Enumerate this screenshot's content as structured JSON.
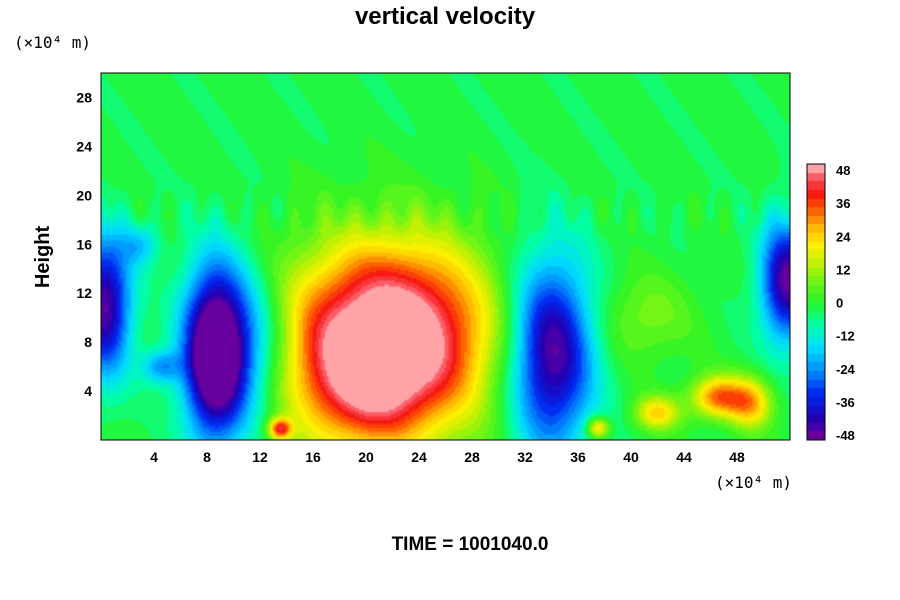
{
  "chart_data": {
    "type": "heatmap",
    "title": "vertical velocity",
    "ylabel": "Height",
    "xunit": "(×10⁴ m)",
    "yunit": "(×10⁴ m)",
    "footer": "TIME = 1001040.0",
    "xlim": [
      0,
      52
    ],
    "ylim": [
      0,
      30
    ],
    "xticks": [
      4,
      8,
      12,
      16,
      20,
      24,
      28,
      32,
      36,
      40,
      44,
      48
    ],
    "yticks": [
      4,
      8,
      12,
      16,
      20,
      24,
      28
    ],
    "colorbar": {
      "range": [
        -48,
        48
      ],
      "ticks": [
        48,
        36,
        24,
        12,
        0,
        -12,
        -24,
        -36,
        -48
      ]
    },
    "features": [
      {
        "x": 20.5,
        "y": 7.5,
        "value": 48,
        "sx": 5.5,
        "sy": 5.5
      },
      {
        "x": 23.5,
        "y": 9.5,
        "value": 20,
        "sx": 4.5,
        "sy": 5.0
      },
      {
        "x": 20.0,
        "y": 4.0,
        "value": 12,
        "sx": 3.0,
        "sy": 3.0
      },
      {
        "x": 8.5,
        "y": 7.0,
        "value": -48,
        "sx": 1.6,
        "sy": 5.0
      },
      {
        "x": 10.5,
        "y": 7.5,
        "value": -30,
        "sx": 2.5,
        "sy": 4.5
      },
      {
        "x": 34.0,
        "y": 7.0,
        "value": -46,
        "sx": 2.2,
        "sy": 5.5
      },
      {
        "x": 0.3,
        "y": 11.0,
        "value": -44,
        "sx": 1.4,
        "sy": 4.0
      },
      {
        "x": 51.8,
        "y": 13.0,
        "value": -44,
        "sx": 1.4,
        "sy": 3.5
      },
      {
        "x": 46.5,
        "y": 3.5,
        "value": 32,
        "sx": 1.4,
        "sy": 1.2
      },
      {
        "x": 49.0,
        "y": 3.0,
        "value": 26,
        "sx": 1.2,
        "sy": 1.5
      },
      {
        "x": 42.0,
        "y": 2.2,
        "value": 24,
        "sx": 1.2,
        "sy": 1.0
      },
      {
        "x": 13.5,
        "y": 0.9,
        "value": 36,
        "sx": 0.6,
        "sy": 0.6
      },
      {
        "x": 37.5,
        "y": 1.0,
        "value": 28,
        "sx": 0.6,
        "sy": 0.6
      },
      {
        "x": 4.5,
        "y": 6.0,
        "value": -20,
        "sx": 1.0,
        "sy": 1.0
      },
      {
        "x": 3.0,
        "y": 16.0,
        "value": -14,
        "sx": 1.0,
        "sy": 1.2
      },
      {
        "x": 41.0,
        "y": 10.0,
        "value": 10,
        "sx": 2.5,
        "sy": 2.5
      }
    ]
  }
}
